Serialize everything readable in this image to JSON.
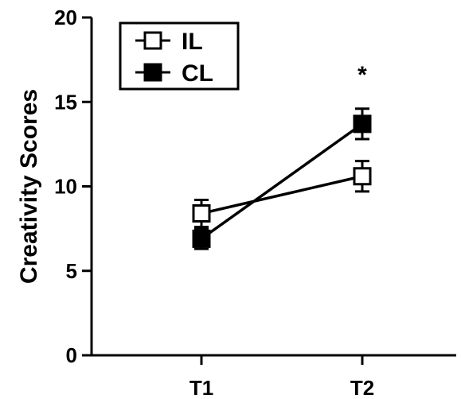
{
  "chart_data": {
    "type": "line",
    "categories": [
      "T1",
      "T2"
    ],
    "ylabel": "Creativity Scores",
    "xlabel": "",
    "ylim": [
      0,
      20
    ],
    "yticks": [
      0,
      5,
      10,
      15,
      20
    ],
    "grid": false,
    "legend_position": "top-left",
    "series": [
      {
        "name": "IL",
        "marker": "open-square",
        "values": [
          8.4,
          10.6
        ],
        "error": [
          0.8,
          0.9
        ],
        "color": "#000000"
      },
      {
        "name": "CL",
        "marker": "filled-square",
        "values": [
          6.9,
          13.7
        ],
        "error": [
          0.6,
          0.9
        ],
        "color": "#000000"
      }
    ],
    "annotations": [
      {
        "text": "*",
        "category": "T2",
        "y": 16.8
      }
    ]
  }
}
